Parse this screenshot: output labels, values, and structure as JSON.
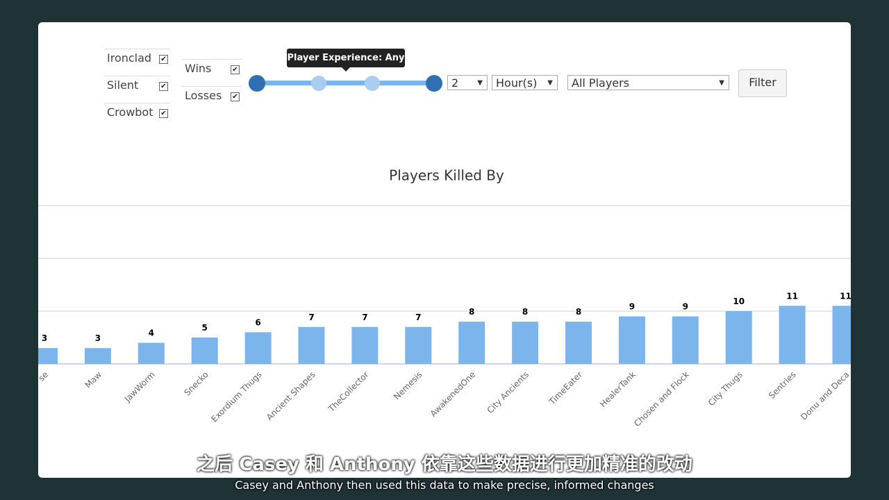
{
  "filters": {
    "characters": [
      {
        "label": "Ironclad",
        "checked": true
      },
      {
        "label": "Silent",
        "checked": true
      },
      {
        "label": "Crowbot",
        "checked": true
      }
    ],
    "outcomes": [
      {
        "label": "Wins",
        "checked": true
      },
      {
        "label": "Losses",
        "checked": true
      }
    ],
    "slider_tooltip": "Player Experience: Any",
    "amount": "2",
    "unit": "Hour(s)",
    "players": "All Players",
    "button": "Filter"
  },
  "chart_data": {
    "type": "bar",
    "title": "Players Killed By",
    "categories": [
      "se",
      "Maw",
      "JawWorm",
      "Snecko",
      "Exordium Thugs",
      "Ancient Shapes",
      "TheCollector",
      "Nemesis",
      "AwakenedOne",
      "City Ancients",
      "TimeEater",
      "HealerTank",
      "Chosen and Flock",
      "City Thugs",
      "Sentries",
      "Donu and Deca"
    ],
    "values": [
      3,
      3,
      4,
      5,
      6,
      7,
      7,
      7,
      8,
      8,
      8,
      9,
      9,
      10,
      11,
      11
    ],
    "color": "#7cb5ec",
    "ylim": [
      0,
      30
    ],
    "yticks": [
      0,
      10,
      20,
      30
    ],
    "grid": true
  },
  "subtitles": {
    "chinese": "之后 Casey 和 Anthony 依靠这些数据进行更加精准的改动",
    "english": "Casey and Anthony then used this data to make precise, informed changes"
  }
}
